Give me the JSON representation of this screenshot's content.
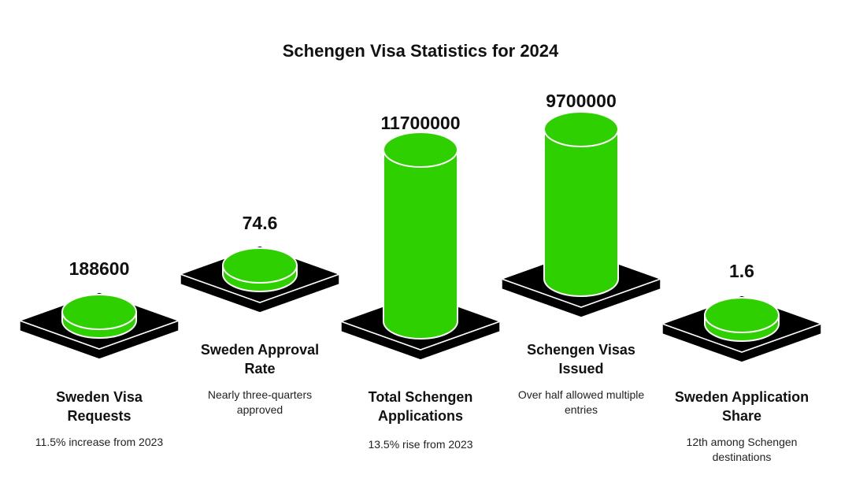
{
  "chart_data": {
    "type": "bar",
    "title": "Schengen Visa Statistics for 2024",
    "categories": [
      "Sweden Visa Requests",
      "Sweden Approval Rate",
      "Total Schengen Applications",
      "Schengen Visas Issued",
      "Sweden Application Share"
    ],
    "value_labels": [
      "188600",
      "74.6",
      "11700000",
      "9700000",
      "1.6"
    ],
    "values": [
      188600,
      74.6,
      11700000,
      9700000,
      1.6
    ],
    "descriptions": [
      "11.5% increase from 2023",
      "Nearly three-quarters approved",
      "13.5% rise from 2023",
      "Over half allowed multiple entries",
      "12th among Schengen destinations"
    ],
    "colors": {
      "bar": "#2fd000",
      "base": "#000000",
      "outline": "#ffffff"
    }
  }
}
